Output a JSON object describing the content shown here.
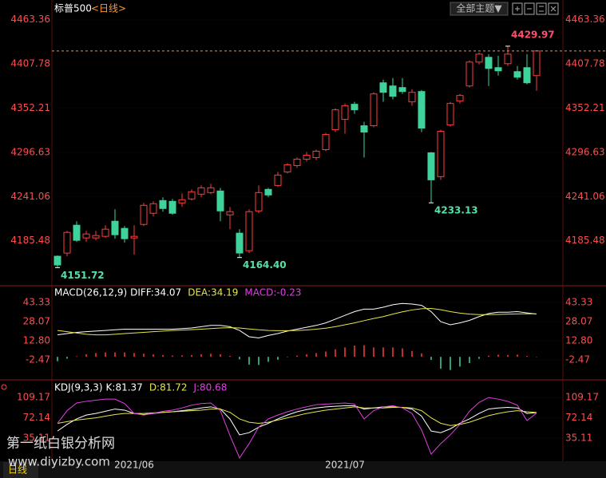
{
  "header": {
    "title": "标普500",
    "period": "<日线>",
    "theme_button": "全部主题▼"
  },
  "footer": {
    "tab": "日线",
    "watermark_name": "第一纸白银分析网",
    "watermark_url": "www.diyizby.com"
  },
  "chart_data": [
    {
      "type": "candlestick",
      "up_color": "#ff3c3c",
      "down_color": "#3fd39b",
      "categories": [
        null,
        null,
        null,
        null,
        null,
        null,
        null,
        null,
        "2021/06",
        null,
        null,
        null,
        null,
        null,
        null,
        null,
        null,
        null,
        null,
        null,
        null,
        null,
        null,
        null,
        null,
        null,
        null,
        null,
        null,
        null,
        "2021/07",
        null,
        null,
        null,
        null,
        null,
        null,
        null,
        null,
        null,
        null,
        null,
        null,
        null,
        null,
        null,
        null,
        null,
        null,
        null,
        null
      ],
      "open": [
        4166,
        4170,
        4205,
        4189,
        4189,
        4191,
        4210,
        4201,
        4189,
        4206,
        4220,
        4236,
        4235,
        4233,
        4238,
        4244,
        4246,
        4248,
        4218,
        4195,
        4173,
        4223,
        4250,
        4255,
        4272,
        4280,
        4288,
        4290,
        4300,
        4325,
        4338,
        4357,
        4330,
        4330,
        4384,
        4380,
        4378,
        4360,
        4373,
        4296,
        4266,
        4331,
        4361,
        4380,
        4410,
        4416,
        4403,
        4408,
        4398,
        4403,
        4393
      ],
      "high": [
        4167,
        4198,
        4210,
        4198,
        4198,
        4205,
        4225,
        4204,
        4205,
        4233,
        4235,
        4240,
        4238,
        4245,
        4250,
        4255,
        4257,
        4252,
        4228,
        4200,
        4225,
        4255,
        4252,
        4272,
        4283,
        4290,
        4297,
        4300,
        4321,
        4352,
        4358,
        4360,
        4335,
        4372,
        4388,
        4390,
        4390,
        4376,
        4375,
        4297,
        4325,
        4360,
        4370,
        4412,
        4422,
        4420,
        4418,
        4429.97,
        4405,
        4420,
        4425
      ],
      "low": [
        4151.72,
        4166,
        4184,
        4184,
        4186,
        4189,
        4188,
        4183,
        4168,
        4204,
        4216,
        4222,
        4218,
        4228,
        4236,
        4240,
        4244,
        4210,
        4200,
        4164.4,
        4170,
        4220,
        4240,
        4253,
        4270,
        4277,
        4285,
        4287,
        4298,
        4322,
        4320,
        4345,
        4290,
        4328,
        4360,
        4363,
        4370,
        4355,
        4322,
        4233.13,
        4262,
        4329,
        4358,
        4378,
        4407,
        4380,
        4393,
        4405,
        4388,
        4382,
        4374
      ],
      "close": [
        4155,
        4196,
        4186,
        4194,
        4192,
        4200,
        4193,
        4188,
        4191,
        4230,
        4232,
        4226,
        4220,
        4237,
        4247,
        4252,
        4252,
        4223,
        4222,
        4170,
        4222,
        4246,
        4243,
        4268,
        4281,
        4288,
        4293,
        4298,
        4319,
        4350,
        4355,
        4350,
        4322,
        4370,
        4372,
        4367,
        4373,
        4372,
        4327,
        4262,
        4323,
        4358,
        4368,
        4410,
        4420,
        4402,
        4399,
        4420,
        4391,
        4384,
        4424
      ],
      "ylim": [
        4130,
        4483
      ],
      "yticks": [
        4463.36,
        4407.78,
        4352.21,
        4296.63,
        4241.06,
        4185.48
      ],
      "grid": true,
      "last_price_line": true,
      "annotations": [
        {
          "value": 4429.97,
          "label": "4429.97"
        },
        {
          "value": 4151.72,
          "label": "4151.72"
        },
        {
          "value": 4164.4,
          "label": "4164.40"
        },
        {
          "value": 4233.13,
          "label": "4233.13"
        }
      ]
    },
    {
      "type": "macd",
      "title": "MACD(26,12,9)",
      "ylim": [
        -17.7,
        54.1
      ],
      "yticks": [
        43.33,
        28.07,
        {
          "value": 12.8,
          "label": "12.80"
        },
        -2.47
      ],
      "grid": true,
      "series": [
        {
          "name": "DIFF:34.07",
          "color": "#ffffff",
          "kind": "line",
          "values": [
            17.5,
            18.5,
            19.5,
            20,
            20.5,
            21,
            21.5,
            22,
            22,
            22,
            22,
            22,
            22,
            22.5,
            23,
            24,
            25,
            25,
            24,
            21,
            16,
            15,
            17,
            18.5,
            20.5,
            22,
            23.5,
            25,
            27,
            30,
            33,
            36,
            38,
            38,
            39.5,
            41.5,
            42.5,
            42,
            41,
            36,
            28,
            25.5,
            27,
            29,
            32,
            34.5,
            35.5,
            35.5,
            36,
            35,
            34.07
          ]
        },
        {
          "name": "DEA:34.19",
          "color": "#e6e64a",
          "kind": "line",
          "values": [
            21,
            20,
            19,
            18,
            17.5,
            17.5,
            18,
            18.5,
            19,
            19.5,
            20,
            20.5,
            21,
            21.3,
            21.6,
            22,
            22.5,
            23,
            23.2,
            23,
            22.2,
            21.5,
            21,
            20.8,
            20.8,
            21,
            21.4,
            22,
            22.8,
            24,
            25.5,
            27,
            28.8,
            30.5,
            32,
            34,
            35.8,
            37.3,
            38.3,
            38.5,
            37.5,
            36,
            34.8,
            34,
            33.6,
            33.6,
            33.8,
            34,
            34.2,
            34.3,
            34.19
          ]
        },
        {
          "name": "MACD:-0.23",
          "color": "#e040e0",
          "kind": "bar",
          "values": [
            -3.5,
            -1.5,
            0.5,
            2,
            3,
            3.5,
            3.5,
            3.5,
            3,
            2.5,
            2,
            1.5,
            1,
            1.2,
            1.4,
            2,
            2.5,
            2,
            0.8,
            -2,
            -6.2,
            -6.5,
            -4,
            -2.3,
            -0.3,
            1,
            2.1,
            3,
            4.2,
            6,
            7.5,
            9,
            9.2,
            7.5,
            7.5,
            7.5,
            6.7,
            4.7,
            2.7,
            -2.5,
            -9.5,
            -10.5,
            -7.8,
            -5,
            -1.6,
            0.9,
            1.7,
            1.5,
            1.8,
            0.7,
            -0.23
          ]
        }
      ]
    },
    {
      "type": "line",
      "title": "KDJ(9,3,3)",
      "ylim": [
        -7,
        135.3
      ],
      "yticks": [
        109.17,
        72.14,
        35.11
      ],
      "grid": true,
      "series": [
        {
          "name": "K:81.37",
          "color": "#ffffff",
          "values": [
            48,
            60,
            70,
            77,
            80,
            84,
            88,
            86,
            80,
            78,
            80,
            82,
            83,
            85,
            87,
            90,
            92,
            88,
            70,
            41,
            45,
            55,
            62,
            70,
            77,
            83,
            87,
            90,
            92,
            93,
            94,
            94,
            88,
            90,
            92,
            92,
            91,
            88,
            75,
            48,
            45,
            52,
            62,
            70,
            80,
            88,
            90,
            91,
            90,
            80,
            81.37
          ]
        },
        {
          "name": "D:81.72",
          "color": "#e6e64a",
          "values": [
            62,
            65,
            68,
            70,
            72,
            75,
            78,
            80,
            80,
            80,
            81,
            82,
            83,
            84,
            85,
            86,
            88,
            88,
            82,
            70,
            64,
            62,
            64,
            68,
            72,
            76,
            80,
            83,
            86,
            88,
            90,
            92,
            90,
            90,
            90,
            91,
            91,
            90,
            85,
            72,
            62,
            58,
            60,
            64,
            70,
            76,
            80,
            83,
            85,
            83,
            81.72
          ]
        },
        {
          "name": "J:80.68",
          "color": "#e040e0",
          "values": [
            62,
            85,
            99,
            102,
            104,
            106,
            106,
            98,
            80,
            77,
            80,
            84,
            86,
            90,
            95,
            98,
            99,
            85,
            40,
            -1,
            25,
            55,
            70,
            77,
            83,
            88,
            92,
            96,
            97,
            98,
            99,
            97,
            70,
            85,
            92,
            94,
            90,
            80,
            50,
            6,
            25,
            41,
            60,
            84,
            100,
            109,
            106,
            102,
            95,
            67,
            80.68
          ]
        }
      ]
    }
  ]
}
